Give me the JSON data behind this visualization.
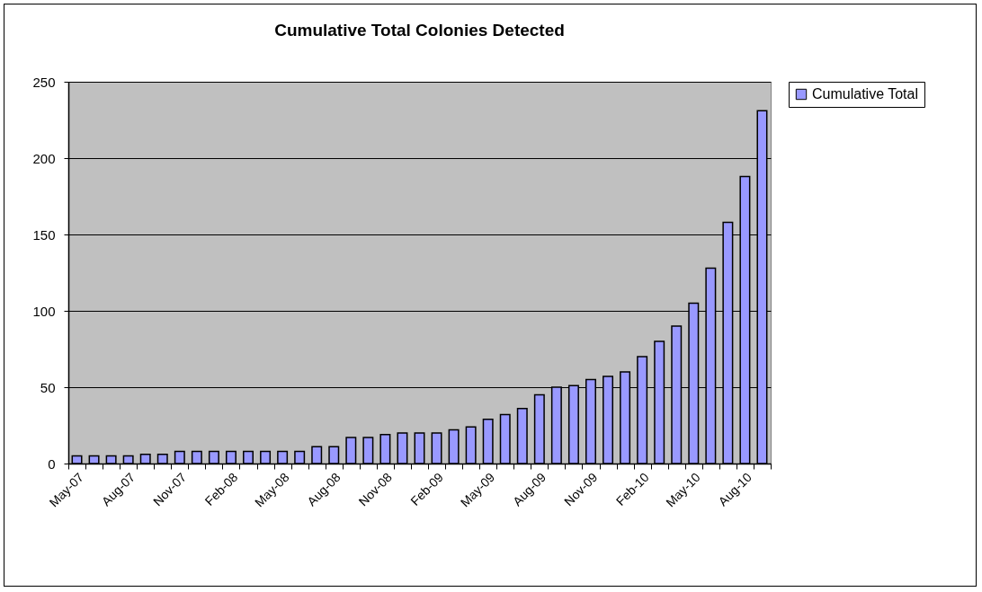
{
  "chart_data": {
    "type": "bar",
    "title": "Cumulative Total Colonies Detected",
    "categories": [
      "May-07",
      null,
      null,
      "Aug-07",
      null,
      null,
      "Nov-07",
      null,
      null,
      "Feb-08",
      null,
      null,
      "May-08",
      null,
      null,
      "Aug-08",
      null,
      null,
      "Nov-08",
      null,
      null,
      "Feb-09",
      null,
      null,
      "May-09",
      null,
      null,
      "Aug-09",
      null,
      null,
      "Nov-09",
      null,
      null,
      "Feb-10",
      null,
      null,
      "May-10",
      null,
      null,
      "Aug-10",
      null
    ],
    "series": [
      {
        "name": "Cumulative Total",
        "color": "#9999ff",
        "values": [
          5,
          5,
          5,
          5,
          6,
          6,
          8,
          8,
          8,
          8,
          8,
          8,
          8,
          8,
          11,
          11,
          17,
          17,
          19,
          20,
          20,
          20,
          22,
          24,
          29,
          32,
          36,
          45,
          50,
          51,
          55,
          57,
          60,
          70,
          80,
          90,
          105,
          128,
          158,
          188,
          231
        ]
      }
    ],
    "ylim": [
      0,
      250
    ],
    "yticks": [
      0,
      50,
      100,
      150,
      200,
      250
    ],
    "grid": "y",
    "legend": "right"
  }
}
